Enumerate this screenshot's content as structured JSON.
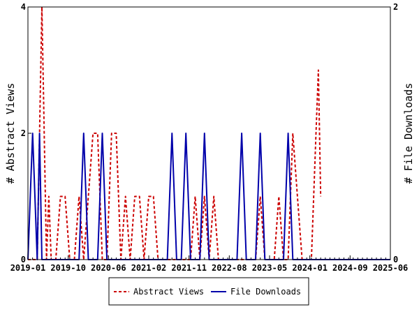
{
  "chart_data": {
    "type": "line",
    "x_tick_labels": [
      "2019-01",
      "2019-10",
      "2020-06",
      "2021-02",
      "2021-11",
      "2022-08",
      "2023-05",
      "2024-01",
      "2024-09",
      "2025-06"
    ],
    "y_left": {
      "label": "# Abstract Views",
      "ticks": [
        "0",
        "2",
        "4"
      ],
      "range": [
        0,
        4
      ]
    },
    "y_right": {
      "label": "# File Downloads",
      "ticks": [
        "0",
        "2"
      ],
      "range": [
        0,
        2
      ]
    },
    "x_range_months": [
      0,
      78
    ],
    "grid": false,
    "legend_position": "bottom",
    "series": [
      {
        "name": "Abstract Views",
        "axis": "left",
        "style": "dashed",
        "color": "#cc0000",
        "points": [
          [
            0,
            0
          ],
          [
            2,
            0
          ],
          [
            3,
            4
          ],
          [
            4,
            0
          ],
          [
            4.5,
            1
          ],
          [
            5,
            0
          ],
          [
            6,
            0
          ],
          [
            7,
            1
          ],
          [
            8,
            1
          ],
          [
            9,
            0
          ],
          [
            10,
            0
          ],
          [
            11,
            1
          ],
          [
            12,
            0
          ],
          [
            13,
            1
          ],
          [
            14,
            2
          ],
          [
            15,
            2
          ],
          [
            16,
            0
          ],
          [
            17,
            0
          ],
          [
            18,
            2
          ],
          [
            19,
            2
          ],
          [
            20,
            0
          ],
          [
            21,
            1
          ],
          [
            22,
            0
          ],
          [
            23,
            1
          ],
          [
            24,
            1
          ],
          [
            25,
            0
          ],
          [
            26,
            1
          ],
          [
            27,
            1
          ],
          [
            28,
            0
          ],
          [
            35,
            0
          ],
          [
            36,
            1
          ],
          [
            37,
            0
          ],
          [
            38,
            1
          ],
          [
            39,
            0
          ],
          [
            40,
            1
          ],
          [
            41,
            0
          ],
          [
            49,
            0
          ],
          [
            50,
            1
          ],
          [
            51,
            0
          ],
          [
            53,
            0
          ],
          [
            54,
            1
          ],
          [
            55,
            0
          ],
          [
            56,
            0
          ],
          [
            57,
            2
          ],
          [
            58,
            1
          ],
          [
            59,
            0
          ],
          [
            60,
            0
          ],
          [
            61,
            0
          ],
          [
            62,
            2
          ],
          [
            62.5,
            3
          ],
          [
            63,
            1
          ]
        ]
      },
      {
        "name": "File Downloads",
        "axis": "right",
        "style": "solid",
        "color": "#0000aa",
        "points": [
          [
            0,
            0
          ],
          [
            1,
            1
          ],
          [
            2,
            0
          ],
          [
            2.5,
            1
          ],
          [
            3,
            0
          ],
          [
            11,
            0
          ],
          [
            12,
            1
          ],
          [
            13,
            0
          ],
          [
            15,
            0
          ],
          [
            16,
            1
          ],
          [
            17,
            0
          ],
          [
            30,
            0
          ],
          [
            31,
            1
          ],
          [
            32,
            0
          ],
          [
            33,
            0
          ],
          [
            34,
            1
          ],
          [
            35,
            0
          ],
          [
            37,
            0
          ],
          [
            38,
            1
          ],
          [
            39,
            0
          ],
          [
            45,
            0
          ],
          [
            46,
            1
          ],
          [
            47,
            0
          ],
          [
            49,
            0
          ],
          [
            50,
            1
          ],
          [
            51,
            0
          ],
          [
            55,
            0
          ],
          [
            56,
            1
          ],
          [
            57,
            0
          ],
          [
            78,
            0
          ]
        ]
      }
    ]
  }
}
